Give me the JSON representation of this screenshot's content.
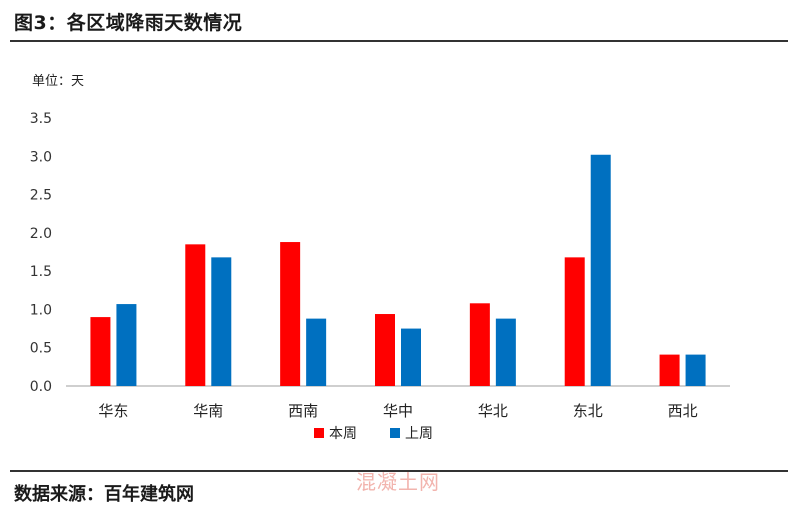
{
  "header": {
    "title": "图3：各区域降雨天数情况"
  },
  "footer": {
    "source": "数据来源：百年建筑网",
    "watermark": "混凝土网"
  },
  "chart_data": {
    "type": "bar",
    "unit_label": "单位：天",
    "categories": [
      "华东",
      "华南",
      "西南",
      "华中",
      "华北",
      "东北",
      "西北"
    ],
    "series": [
      {
        "name": "本周",
        "color": "#ff0000",
        "values": [
          0.9,
          1.85,
          1.88,
          0.94,
          1.08,
          1.68,
          0.41
        ]
      },
      {
        "name": "上周",
        "color": "#0070c0",
        "values": [
          1.07,
          1.68,
          0.88,
          0.75,
          0.88,
          3.02,
          0.41
        ]
      }
    ],
    "ylim": [
      0,
      3.5
    ],
    "yticks": [
      "0.0",
      "0.5",
      "1.0",
      "1.5",
      "2.0",
      "2.5",
      "3.0",
      "3.5"
    ],
    "grid": false,
    "legend_position": "bottom-center"
  }
}
